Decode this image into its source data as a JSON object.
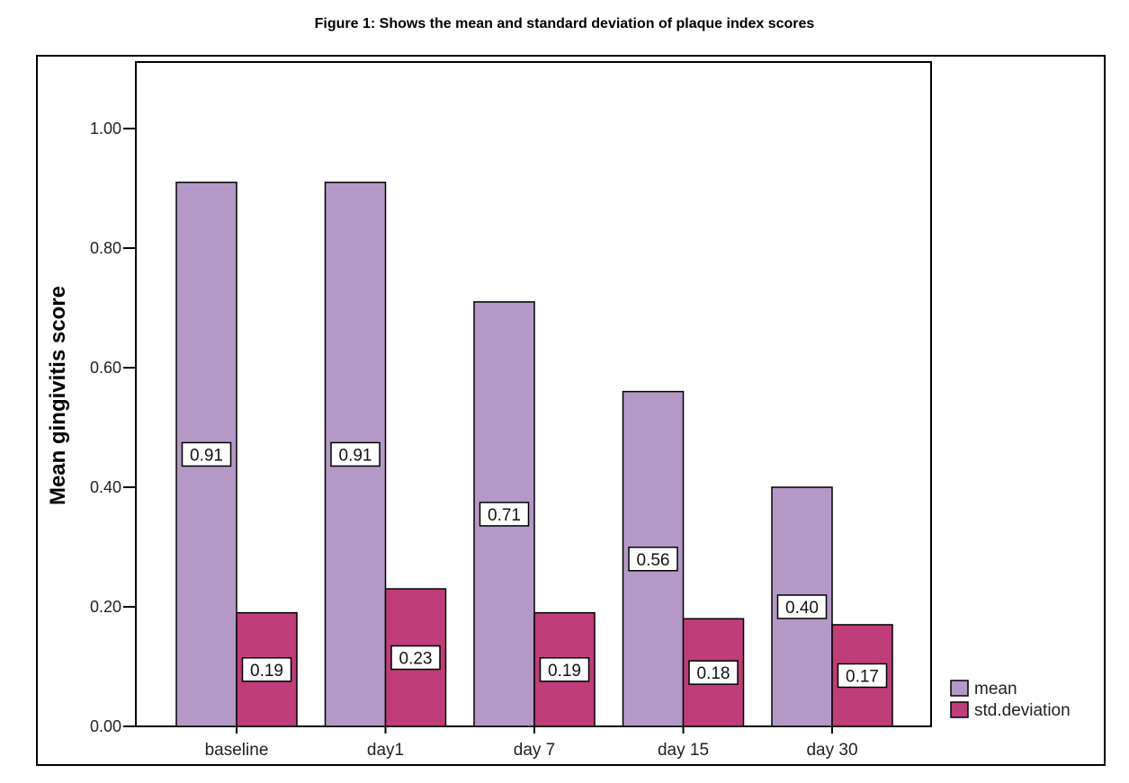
{
  "figure_caption": "Figure 1: Shows the mean and standard deviation of plaque index scores",
  "chart_data": {
    "type": "bar",
    "title": "",
    "xlabel": "",
    "ylabel": "Mean gingivitis score",
    "categories": [
      "baseline",
      "day1",
      "day 7",
      "day 15",
      "day 30"
    ],
    "series": [
      {
        "name": "mean",
        "color": "#b499c6",
        "values": [
          0.91,
          0.91,
          0.71,
          0.56,
          0.4
        ],
        "labels": [
          "0.91",
          "0.91",
          "0.71",
          "0.56",
          "0.40"
        ]
      },
      {
        "name": "std.deviation",
        "color": "#bf3d78",
        "values": [
          0.19,
          0.23,
          0.19,
          0.18,
          0.17
        ],
        "labels": [
          "0.19",
          "0.23",
          "0.19",
          "0.18",
          "0.17"
        ]
      }
    ],
    "ylim": [
      0,
      1.1
    ],
    "yticks": [
      "0.00",
      "0.20",
      "0.40",
      "0.60",
      "0.80",
      "1.00"
    ],
    "ytick_values": [
      0,
      0.2,
      0.4,
      0.6,
      0.8,
      1.0
    ],
    "grid": false,
    "legend_position": "bottom-right"
  }
}
